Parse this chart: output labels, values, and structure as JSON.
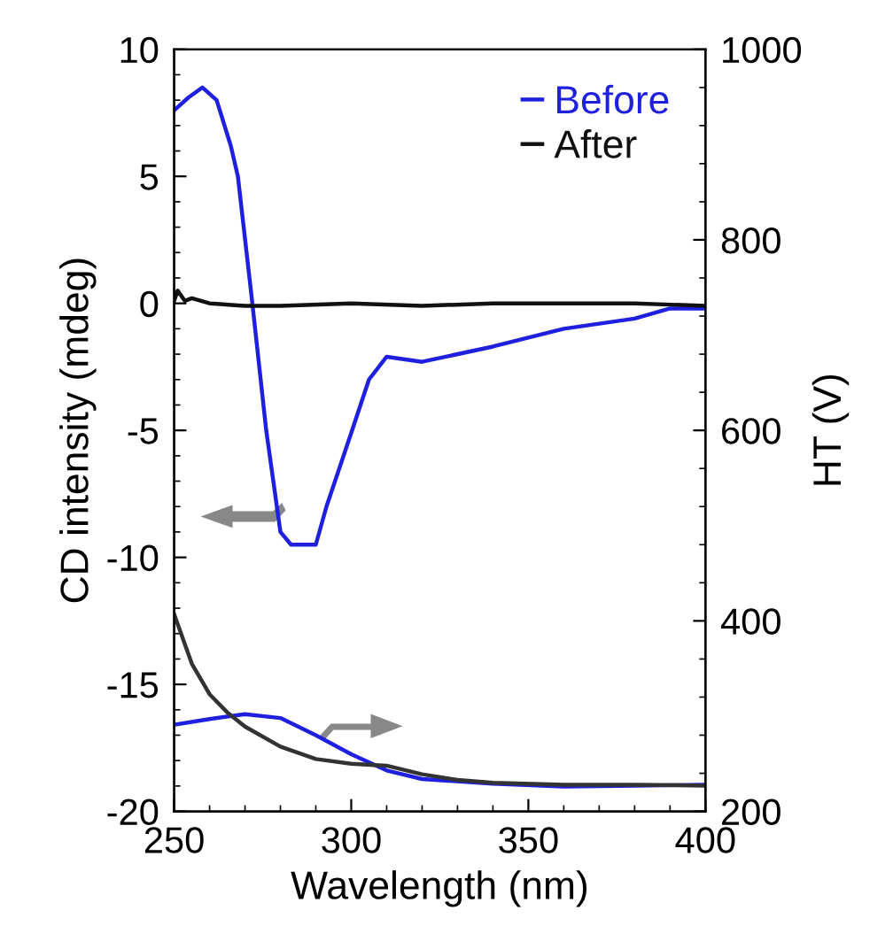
{
  "chart_data": {
    "type": "line",
    "xlabel": "Wavelength (nm)",
    "ylabel": "CD intensity (mdeg)",
    "y2label": "HT (V)",
    "xlim": [
      250,
      400
    ],
    "xticks": [
      250,
      300,
      350,
      400
    ],
    "ylim": [
      -20,
      10
    ],
    "yticks": [
      -20,
      -15,
      -10,
      -5,
      0,
      5,
      10
    ],
    "y2lim": [
      200,
      1000
    ],
    "y2ticks": [
      200,
      400,
      600,
      800,
      1000
    ],
    "legend": "top right",
    "grid": false,
    "series": [
      {
        "name": "Before",
        "color": "#1f1fe0",
        "x": [
          250,
          254,
          258,
          262,
          266,
          268,
          272,
          276,
          280,
          283,
          290,
          293,
          300,
          305,
          310,
          320,
          340,
          360,
          380,
          390,
          400
        ],
        "values": [
          7.6,
          8.1,
          8.5,
          8.0,
          6.2,
          5.0,
          0.1,
          -5,
          -9,
          -9.5,
          -9.5,
          -8,
          -5.1,
          -3,
          -2.1,
          -2.3,
          -1.7,
          -1.0,
          -0.6,
          -0.2,
          -0.2
        ]
      },
      {
        "name": "After",
        "color": "#111111",
        "x": [
          250,
          251,
          253,
          255,
          260,
          270,
          280,
          300,
          320,
          340,
          360,
          380,
          400
        ],
        "values": [
          0.1,
          0.5,
          0.1,
          0.2,
          0.0,
          -0.1,
          -0.1,
          0.0,
          -0.1,
          0.0,
          0.0,
          0.0,
          -0.1
        ]
      },
      {
        "color": "#1f1fe0",
        "axis": "y2",
        "x": [
          250,
          260,
          270,
          280,
          290,
          300,
          310,
          320,
          340,
          360,
          380,
          400
        ],
        "values": [
          291,
          297,
          302,
          298,
          280,
          260,
          243,
          234,
          229,
          226,
          227,
          228
        ]
      },
      {
        "color": "#333333",
        "axis": "y2",
        "x": [
          250,
          255,
          260,
          265,
          270,
          280,
          290,
          300,
          310,
          320,
          330,
          340,
          360,
          380,
          400
        ],
        "values": [
          407,
          355,
          323,
          304,
          289,
          268,
          255,
          250,
          248,
          239,
          233,
          230,
          228,
          228,
          227
        ]
      }
    ]
  }
}
